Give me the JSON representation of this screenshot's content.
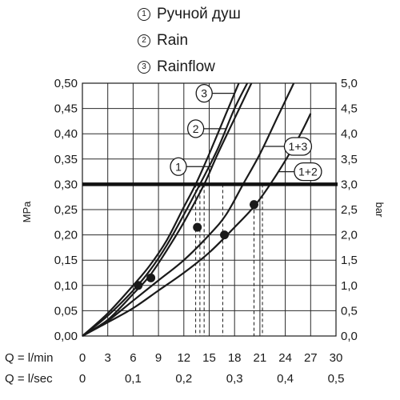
{
  "legend": [
    {
      "marker": "1",
      "label": "Ручной душ"
    },
    {
      "marker": "2",
      "label": "Rain"
    },
    {
      "marker": "3",
      "label": "Rainflow"
    }
  ],
  "chart_data": {
    "type": "line",
    "title": "",
    "xlabel_lmin": "Q = l/min",
    "xlabel_lsec": "Q = l/sec",
    "ylabel_left": "MPa",
    "ylabel_right": "bar",
    "xlim": [
      0,
      30
    ],
    "ylim": [
      0,
      0.5
    ],
    "x_ticks": [
      "0",
      "3",
      "6",
      "9",
      "12",
      "15",
      "18",
      "21",
      "24",
      "27",
      "30"
    ],
    "x_ticks_sec": [
      {
        "value": 0,
        "label": "0"
      },
      {
        "value": 6,
        "label": "0,1"
      },
      {
        "value": 12,
        "label": "0,2"
      },
      {
        "value": 18,
        "label": "0,3"
      },
      {
        "value": 24,
        "label": "0,4"
      },
      {
        "value": 30,
        "label": "0,5"
      }
    ],
    "y_ticks_left": [
      "0,00",
      "0,05",
      "0,10",
      "0,15",
      "0,20",
      "0,25",
      "0,30",
      "0,35",
      "0,40",
      "0,45",
      "0,50"
    ],
    "y_ticks_right": [
      "0,0",
      "0,5",
      "1,0",
      "1,5",
      "2,0",
      "2,5",
      "3,0",
      "3,5",
      "4,0",
      "4,5",
      "5,0"
    ],
    "grid": true,
    "reference_line": {
      "y": 0.3
    },
    "series": [
      {
        "name": "1",
        "x": [
          0,
          3,
          6,
          8,
          10,
          12,
          14.4,
          16,
          18,
          20
        ],
        "y": [
          0,
          0.032,
          0.083,
          0.12,
          0.17,
          0.225,
          0.3,
          0.36,
          0.43,
          0.5
        ]
      },
      {
        "name": "2",
        "x": [
          0,
          3,
          6,
          8,
          10,
          12,
          13.9,
          16,
          18,
          19.5
        ],
        "y": [
          0,
          0.04,
          0.09,
          0.13,
          0.18,
          0.24,
          0.3,
          0.37,
          0.45,
          0.5
        ]
      },
      {
        "name": "3",
        "x": [
          0,
          3,
          6,
          8,
          10,
          12,
          13.4,
          15,
          17,
          18.5
        ],
        "y": [
          0,
          0.045,
          0.1,
          0.14,
          0.19,
          0.255,
          0.3,
          0.36,
          0.44,
          0.5
        ]
      },
      {
        "name": "1+3",
        "x": [
          0,
          3,
          6,
          9,
          12,
          15,
          17,
          19,
          21,
          23,
          25
        ],
        "y": [
          0,
          0.03,
          0.07,
          0.11,
          0.15,
          0.2,
          0.24,
          0.3,
          0.36,
          0.43,
          0.5
        ]
      },
      {
        "name": "1+2",
        "x": [
          0,
          3,
          6,
          9,
          12,
          15,
          18,
          20.5,
          23,
          25.5,
          27
        ],
        "y": [
          0,
          0.027,
          0.055,
          0.09,
          0.125,
          0.165,
          0.215,
          0.26,
          0.32,
          0.39,
          0.44
        ]
      }
    ],
    "points": [
      {
        "x": 6.6,
        "y": 0.1
      },
      {
        "x": 8.1,
        "y": 0.115
      },
      {
        "x": 13.6,
        "y": 0.215
      },
      {
        "x": 16.8,
        "y": 0.2
      },
      {
        "x": 20.3,
        "y": 0.26
      }
    ],
    "dashed_drops": [
      {
        "x": 13.4,
        "y": 0.3
      },
      {
        "x": 13.9,
        "y": 0.3
      },
      {
        "x": 14.4,
        "y": 0.3
      },
      {
        "x": 16.6,
        "y": 0.3
      },
      {
        "x": 20.3,
        "y": 0.26
      },
      {
        "x": 21.3,
        "y": 0.3
      }
    ],
    "curve_labels": [
      {
        "text": "3",
        "series": "3"
      },
      {
        "text": "2",
        "series": "2"
      },
      {
        "text": "1",
        "series": "1"
      },
      {
        "text": "1+3",
        "series": "1+3"
      },
      {
        "text": "1+2",
        "series": "1+2"
      }
    ]
  }
}
